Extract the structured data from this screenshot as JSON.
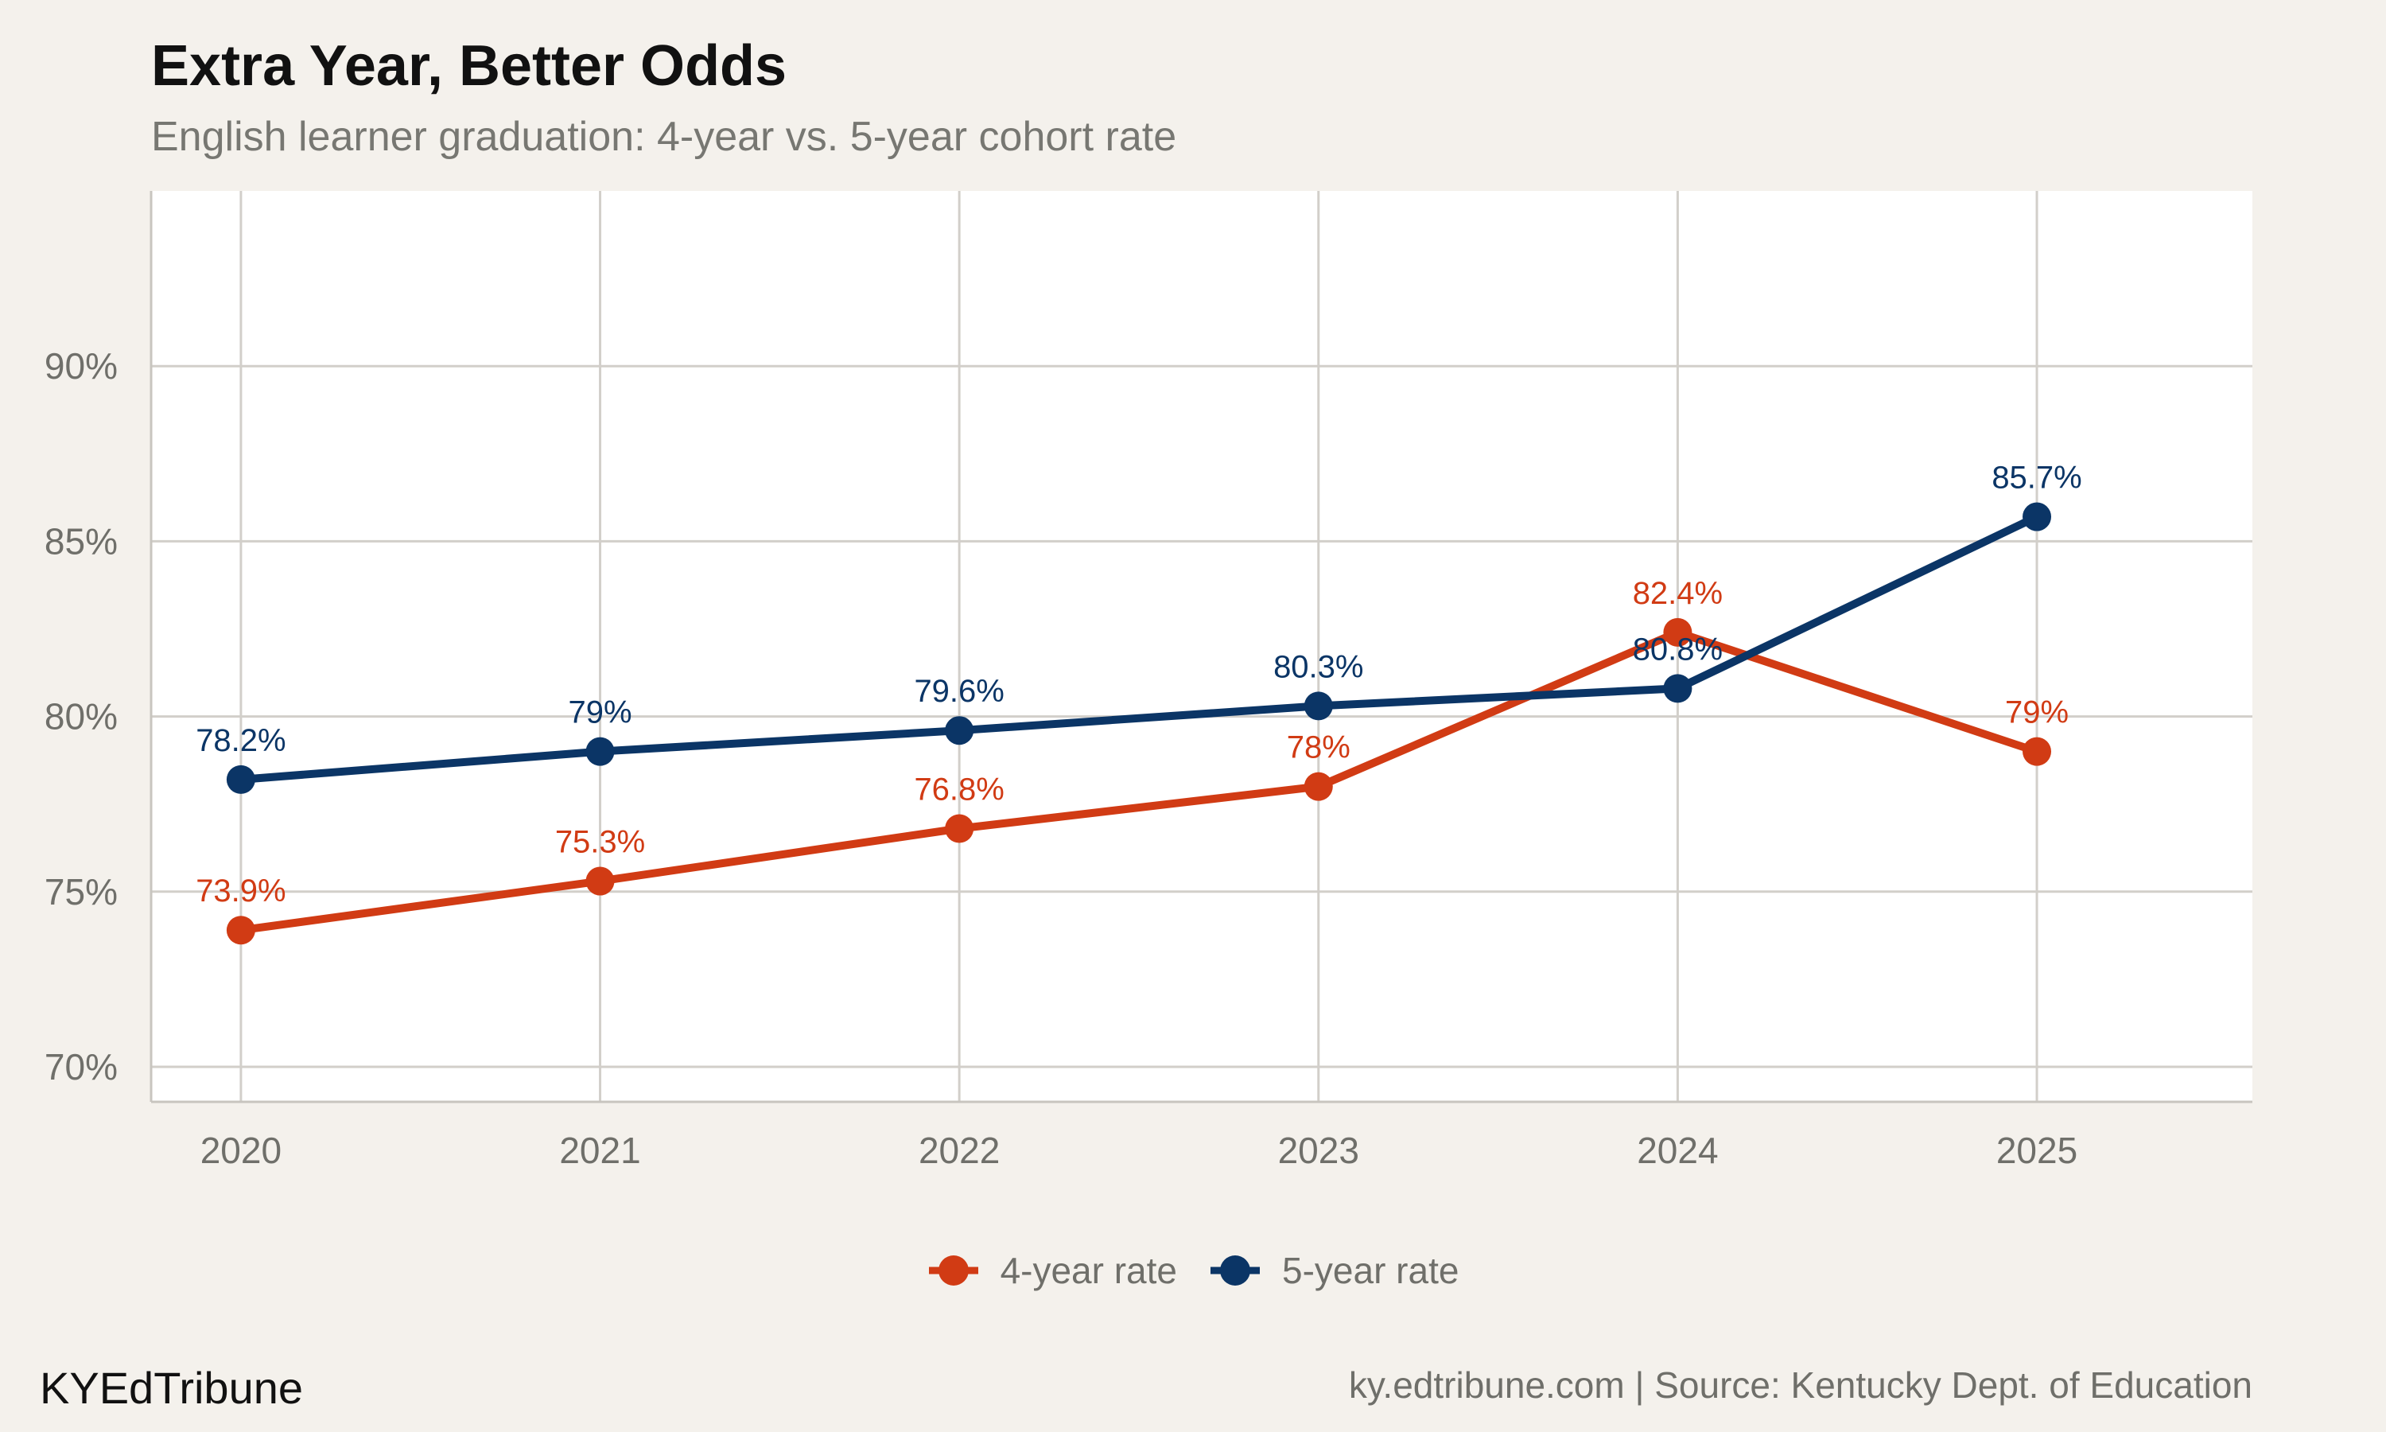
{
  "title": "Extra Year, Better Odds",
  "subtitle": "English learner graduation: 4-year vs. 5-year cohort rate",
  "brand": "KYEdTribune",
  "caption": "ky.edtribune.com | Source: Kentucky Dept. of Education",
  "chart_data": {
    "type": "line",
    "x": [
      "2020",
      "2021",
      "2022",
      "2023",
      "2024",
      "2025"
    ],
    "ylim": [
      69,
      95
    ],
    "xlim": [
      2019.75,
      2025.6
    ],
    "yticks": [
      70,
      75,
      80,
      85,
      90
    ],
    "ytick_labels": [
      "70%",
      "75%",
      "80%",
      "85%",
      "90%"
    ],
    "grid": true,
    "legend_position": "bottom",
    "series": [
      {
        "name": "4-year rate",
        "color": "#d13b14",
        "values": [
          73.9,
          75.3,
          76.8,
          78.0,
          82.4,
          79.0
        ],
        "labels": [
          "73.9%",
          "75.3%",
          "76.8%",
          "78%",
          "82.4%",
          "79%"
        ]
      },
      {
        "name": "5-year rate",
        "color": "#0b3566",
        "values": [
          78.2,
          79.0,
          79.6,
          80.3,
          80.8,
          85.7
        ],
        "labels": [
          "78.2%",
          "79%",
          "79.6%",
          "80.3%",
          "80.8%",
          "85.7%"
        ]
      }
    ]
  }
}
